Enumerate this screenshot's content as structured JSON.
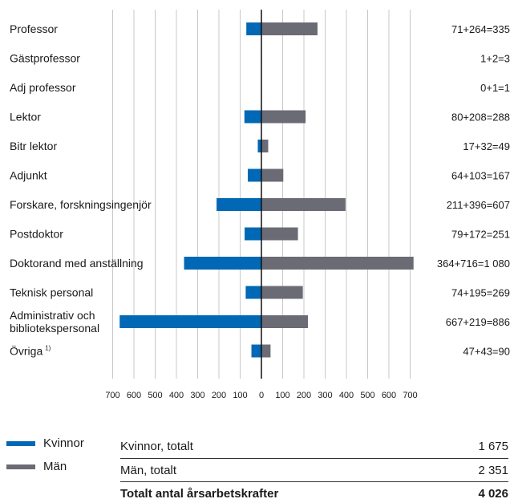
{
  "colors": {
    "women": "#0068b4",
    "men": "#6b6b75",
    "grid": "#c8c8c8",
    "axis": "#111111"
  },
  "chart_data": {
    "type": "bar",
    "orientation": "horizontal-diverging",
    "categories": [
      "Professor",
      "Gästprofessor",
      "Adj professor",
      "Lektor",
      "Bitr lektor",
      "Adjunkt",
      "Forskare, forskningsingenjör",
      "Postdoktor",
      "Doktorand med anställning",
      "Teknisk personal",
      "Administrativ och bibliotekspersonal",
      "Övriga"
    ],
    "category_lines": [
      [
        "Professor"
      ],
      [
        "Gästprofessor"
      ],
      [
        "Adj professor"
      ],
      [
        "Lektor"
      ],
      [
        "Bitr lektor"
      ],
      [
        "Adjunkt"
      ],
      [
        "Forskare, forskningsingenjör"
      ],
      [
        "Postdoktor"
      ],
      [
        "Doktorand med anställning"
      ],
      [
        "Teknisk personal"
      ],
      [
        "Administrativ och",
        "bibliotekspersonal"
      ],
      [
        "Övriga"
      ]
    ],
    "category_superscripts": [
      "",
      "",
      "",
      "",
      "",
      "",
      "",
      "",
      "",
      "",
      "",
      "1)"
    ],
    "series": [
      {
        "name": "Kvinnor",
        "values": [
          71,
          1,
          0,
          80,
          17,
          64,
          211,
          79,
          364,
          74,
          667,
          47
        ]
      },
      {
        "name": "Män",
        "values": [
          264,
          2,
          1,
          208,
          32,
          103,
          396,
          172,
          716,
          195,
          219,
          43
        ]
      }
    ],
    "sum_labels": [
      "71+264=335",
      "1+2=3",
      "0+1=1",
      "80+208=288",
      "17+32=49",
      "64+103=167",
      "211+396=607",
      "79+172=251",
      "364+716=1 080",
      "74+195=269",
      "667+219=886",
      "47+43=90"
    ],
    "x_tick_values": [
      -700,
      -600,
      -500,
      -400,
      -300,
      -200,
      -100,
      0,
      100,
      200,
      300,
      400,
      500,
      600,
      700
    ],
    "x_tick_labels": [
      "700",
      "600",
      "500",
      "400",
      "300",
      "200",
      "100",
      "0",
      "100",
      "200",
      "300",
      "400",
      "500",
      "600",
      "700"
    ],
    "xlim": [
      -700,
      700
    ],
    "grid": true,
    "legend_position": "bottom-left",
    "title": "",
    "xlabel": "",
    "ylabel": ""
  },
  "legend": {
    "women_label": "Kvinnor",
    "men_label": "Män"
  },
  "totals": {
    "women_label": "Kvinnor, totalt",
    "women_value": "1 675",
    "men_label": "Män, totalt",
    "men_value": "2 351",
    "total_label": "Totalt antal årsarbetskrafter",
    "total_value": "4 026"
  }
}
